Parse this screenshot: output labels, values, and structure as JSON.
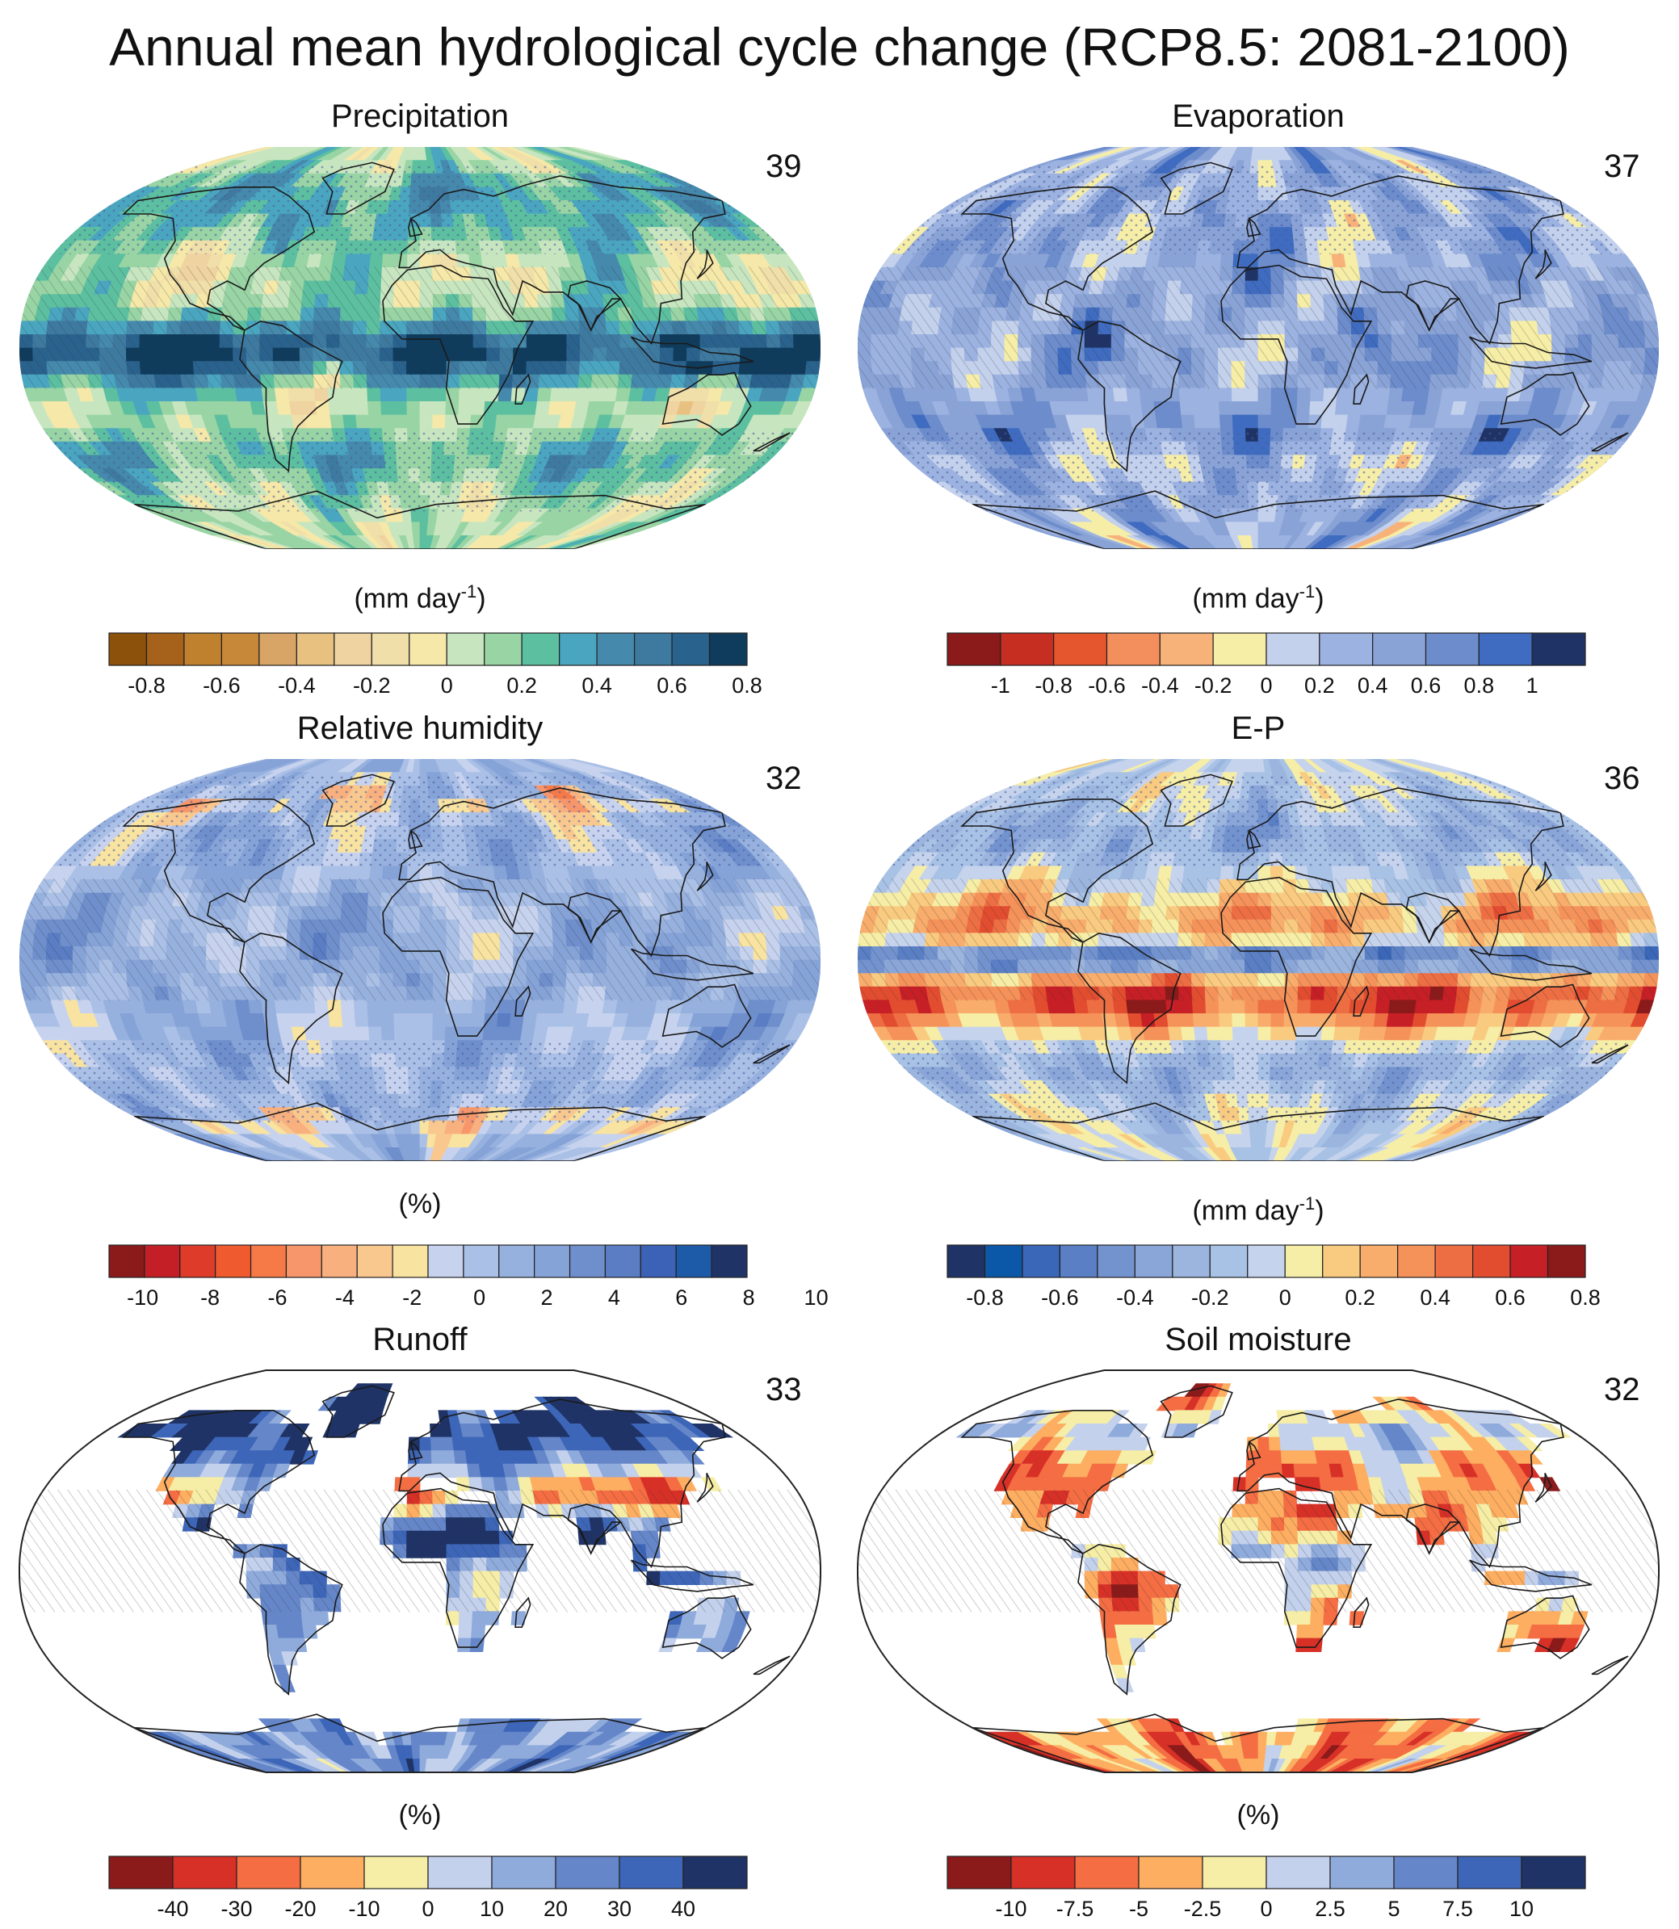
{
  "figure": {
    "title": "Annual mean hydrological cycle change (RCP8.5: 2081-2100)"
  },
  "colors": {
    "ocean_line": "#222222",
    "land_outline": "#1a1a1a",
    "stipple": "#4a5a9a",
    "hatch": "#333333"
  },
  "panels": [
    {
      "id": "precipitation",
      "title": "Precipitation",
      "count": "39",
      "units_main": "(mm day",
      "units_sup": "-1",
      "units_end": ")",
      "land_only": false,
      "colors": [
        "#8c510a",
        "#a6611a",
        "#bf812d",
        "#c8883a",
        "#d9a566",
        "#e8c181",
        "#efd3a0",
        "#f0dfa8",
        "#f6e8a8",
        "#c7e6c0",
        "#99d4a4",
        "#5cc0a0",
        "#4aa6c0",
        "#4589ac",
        "#3e7aa0",
        "#2a628e",
        "#0f3c5c"
      ],
      "ticks": [
        "-0.8",
        "-0.6",
        "-0.4",
        "-0.2",
        "0",
        "0.2",
        "0.4",
        "0.6",
        "0.8"
      ],
      "tick_positions": [
        1,
        3,
        5,
        7,
        9,
        11,
        13,
        15,
        17
      ],
      "field": {
        "base": 9.2,
        "lat": [
          [
            0,
            4.5,
            14
          ],
          [
            -8,
            2.6,
            14
          ],
          [
            -50,
            2.2,
            12
          ],
          [
            55,
            1.8,
            12
          ],
          [
            70,
            2.2,
            10
          ]
        ],
        "dry": [
          [
            -20,
            -2.8,
            20
          ]
        ]
      }
    },
    {
      "id": "evaporation",
      "title": "Evaporation",
      "count": "37",
      "units_main": "(mm day",
      "units_sup": "-1",
      "units_end": ")",
      "land_only": false,
      "colors": [
        "#8b1a1a",
        "#c62e22",
        "#e5562e",
        "#f28f5c",
        "#f7b27a",
        "#f6eea6",
        "#c3d1ec",
        "#9cb2e0",
        "#8aa3d6",
        "#6c8ccc",
        "#3f6cc0",
        "#1f3366"
      ],
      "ticks": [
        "-1",
        "-0.8",
        "-0.6",
        "-0.4",
        "-0.2",
        "0",
        "0.2",
        "0.4",
        "0.6",
        "0.8",
        "1"
      ],
      "tick_positions": [
        1,
        2,
        3,
        4,
        5,
        6,
        7,
        8,
        9,
        10,
        11
      ],
      "field": {
        "base": 7.3,
        "lat": [
          [
            0,
            0.4,
            20
          ],
          [
            -50,
            -1.2,
            8
          ],
          [
            -40,
            1.0,
            12
          ]
        ],
        "dry": []
      }
    },
    {
      "id": "relative-humidity",
      "title": "Relative humidity",
      "count": "32",
      "units_main": "(%)",
      "units_sup": "",
      "units_end": "",
      "land_only": false,
      "colors": [
        "#8b1a1a",
        "#c41e26",
        "#de3b2a",
        "#ef5a2f",
        "#f57a48",
        "#f7966a",
        "#f8b07e",
        "#f9c88e",
        "#f8e3a0",
        "#c7d3ee",
        "#aac0e6",
        "#97b1df",
        "#86a3d8",
        "#6f8fcc",
        "#5a7dc4",
        "#3c62b8",
        "#1d5aa8",
        "#1f3366"
      ],
      "ticks": [
        "-10",
        "-8",
        "-6",
        "-4",
        "-2",
        "0",
        "2",
        "4",
        "6",
        "8",
        "10"
      ],
      "tick_positions": [
        0.95,
        2.85,
        4.75,
        6.65,
        8.55,
        10.45,
        12.35,
        14.25,
        16.15,
        18.05,
        19.95
      ],
      "field": {
        "base": 10.6,
        "lat": [
          [
            0,
            0.5,
            25
          ]
        ],
        "dry": [
          [
            75,
            -4,
            10
          ],
          [
            -70,
            -3,
            8
          ]
        ]
      }
    },
    {
      "id": "e-minus-p",
      "title": "E-P",
      "count": "36",
      "units_main": "(mm day",
      "units_sup": "-1",
      "units_end": ")",
      "land_only": false,
      "colors": [
        "#1f3366",
        "#0b57a8",
        "#3a67b8",
        "#5a7fc4",
        "#7393cf",
        "#8aa6d8",
        "#9bb5de",
        "#a8c2e6",
        "#c6d3ec",
        "#f6eea6",
        "#f9cb80",
        "#f8ad6c",
        "#f5925a",
        "#ee6e44",
        "#e24d30",
        "#c61f26",
        "#8b1a1a"
      ],
      "ticks": [
        "-0.8",
        "-0.6",
        "-0.4",
        "-0.2",
        "0",
        "0.2",
        "0.4",
        "0.6",
        "0.8"
      ],
      "tick_positions": [
        1,
        3,
        5,
        7,
        9,
        11,
        13,
        15,
        17
      ],
      "field": {
        "base": 7.8,
        "lat": [
          [
            0,
            -6.5,
            6
          ],
          [
            -18,
            6.0,
            14
          ],
          [
            18,
            3.5,
            12
          ],
          [
            -50,
            -2,
            10
          ],
          [
            55,
            -2,
            12
          ]
        ],
        "dry": []
      }
    },
    {
      "id": "runoff",
      "title": "Runoff",
      "count": "33",
      "units_main": "(%)",
      "units_sup": "",
      "units_end": "",
      "land_only": true,
      "colors": [
        "#8b1a1a",
        "#d73027",
        "#f46d43",
        "#fdae61",
        "#f6eea6",
        "#c3d1ec",
        "#8fabdc",
        "#6586c8",
        "#3d66b8",
        "#1f3366"
      ],
      "ticks": [
        "-40",
        "-30",
        "-20",
        "-10",
        "0",
        "10",
        "20",
        "30",
        "40"
      ],
      "tick_positions": [
        1,
        2,
        3,
        4,
        5,
        6,
        7,
        8,
        9
      ],
      "field": {
        "base": 6.4,
        "lat": [
          [
            65,
            2.5,
            15
          ],
          [
            35,
            -3.5,
            10
          ],
          [
            15,
            2.5,
            10
          ]
        ],
        "dry": []
      }
    },
    {
      "id": "soil-moisture",
      "title": "Soil moisture",
      "count": "32",
      "units_main": "(%)",
      "units_sup": "",
      "units_end": "",
      "land_only": true,
      "colors": [
        "#8b1a1a",
        "#d73027",
        "#f46d43",
        "#fdae61",
        "#f6eea6",
        "#c3d1ec",
        "#8fabdc",
        "#6586c8",
        "#3d66b8",
        "#1f3366"
      ],
      "ticks": [
        "-10",
        "-7.5",
        "-5",
        "-2.5",
        "0",
        "2.5",
        "5",
        "7.5",
        "10"
      ],
      "tick_positions": [
        1,
        2,
        3,
        4,
        5,
        6,
        7,
        8,
        9
      ],
      "field": {
        "base": 2.6,
        "lat": [
          [
            62,
            2.5,
            10
          ],
          [
            5,
            2.5,
            8
          ]
        ],
        "dry": []
      }
    }
  ]
}
